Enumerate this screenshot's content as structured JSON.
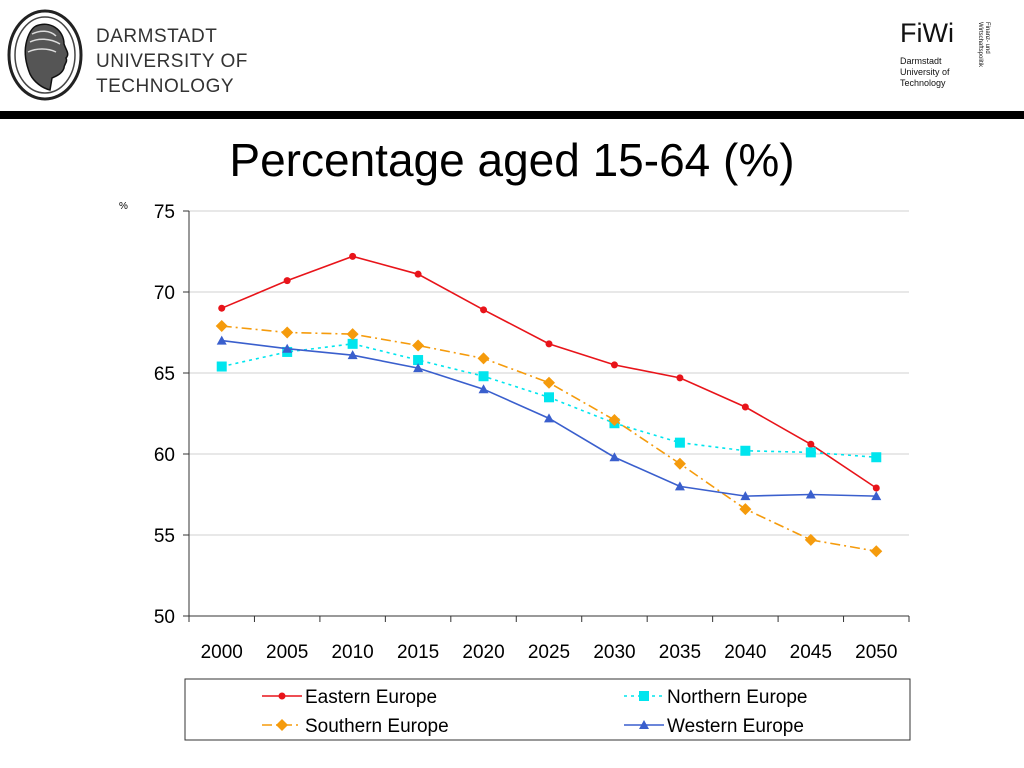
{
  "header": {
    "university_lines": [
      "DARMSTADT",
      "UNIVERSITY OF",
      "TECHNOLOGY"
    ],
    "fiwi_title": "FiWi",
    "fiwi_lines": [
      "Darmstadt",
      "University of",
      "Technology"
    ],
    "fiwi_vertical": [
      "Finanz- und",
      "Wirtschaftspolitik"
    ]
  },
  "slide": {
    "title": "Percentage aged 15-64 (%)"
  },
  "chart_data": {
    "type": "line",
    "title": "Percentage aged 15-64 (%)",
    "ylabel": "%",
    "xlabel": "",
    "ylim": [
      50,
      75
    ],
    "yticks": [
      "50",
      "55",
      "60",
      "65",
      "70",
      "75"
    ],
    "categories": [
      "2000",
      "2005",
      "2010",
      "2015",
      "2020",
      "2025",
      "2030",
      "2035",
      "2040",
      "2045",
      "2050"
    ],
    "grid": "horizontal",
    "legend": "bottom",
    "series": [
      {
        "name": "Eastern Europe",
        "color": "#e8141a",
        "marker": "circle",
        "dash": "solid",
        "values": [
          69.0,
          70.7,
          72.2,
          71.1,
          68.9,
          66.8,
          65.5,
          64.7,
          62.9,
          60.6,
          57.9
        ]
      },
      {
        "name": "Northern Europe",
        "color": "#00e5ee",
        "marker": "square",
        "dash": "dotted",
        "values": [
          65.4,
          66.3,
          66.8,
          65.8,
          64.8,
          63.5,
          61.9,
          60.7,
          60.2,
          60.1,
          59.8
        ]
      },
      {
        "name": "Southern Europe",
        "color": "#f59b0c",
        "marker": "diamond",
        "dash": "dashdot",
        "values": [
          67.9,
          67.5,
          67.4,
          66.7,
          65.9,
          64.4,
          62.1,
          59.4,
          56.6,
          54.7,
          54.0
        ]
      },
      {
        "name": "Western Europe",
        "color": "#3a5fcd",
        "marker": "triangle",
        "dash": "solid",
        "values": [
          67.0,
          66.5,
          66.1,
          65.3,
          64.0,
          62.2,
          59.8,
          58.0,
          57.4,
          57.5,
          57.4
        ]
      }
    ]
  }
}
